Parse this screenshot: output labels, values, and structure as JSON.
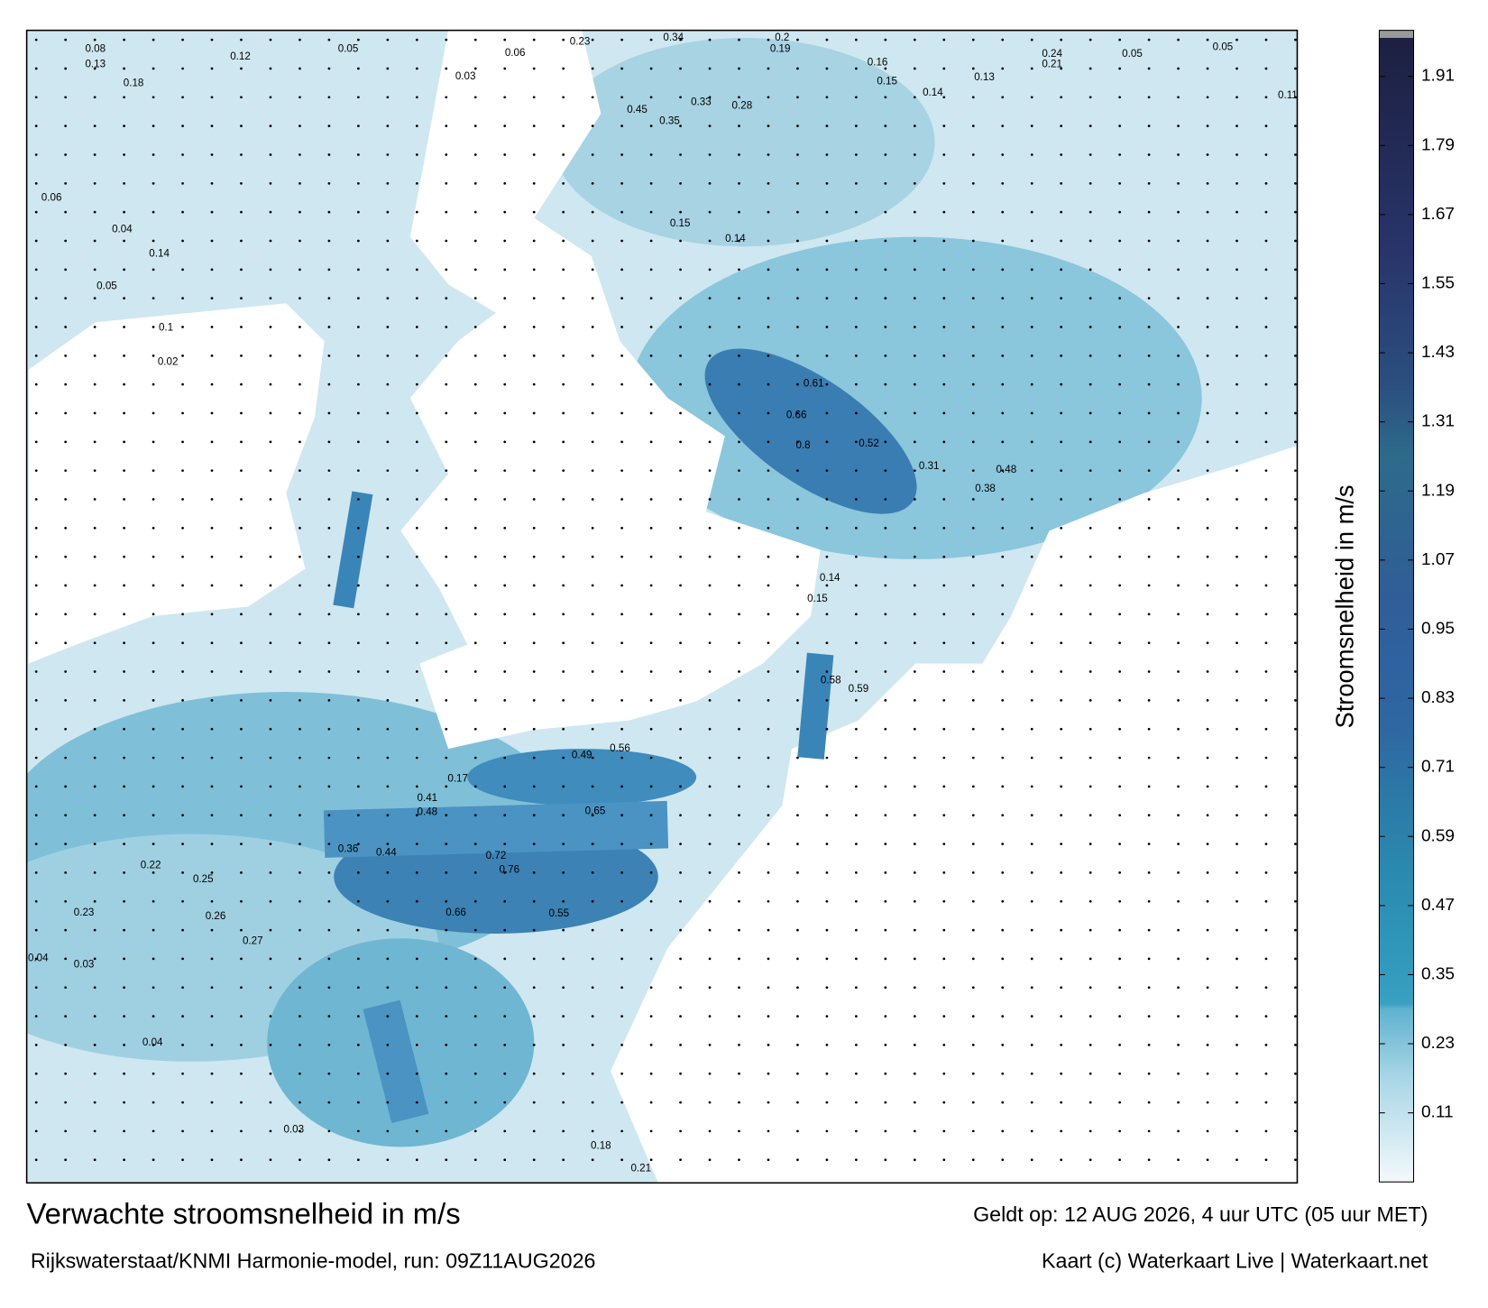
{
  "header": {
    "title": "Verwachte stroomsnelheid in m/s",
    "subtitle": "Rijkswaterstaat/KNMI Harmonie-model, run: 09Z11AUG2026",
    "valid_time": "Geldt op: 12 AUG 2026, 4 uur UTC (05 uur MET)",
    "credit": "Kaart (c) Waterkaart Live | Waterkaart.net"
  },
  "colorbar": {
    "label": "Stroomsnelheid in m/s",
    "lim": [
      -0.01,
      1.99
    ],
    "ticks": [
      0.11,
      0.23,
      0.35,
      0.47,
      0.59,
      0.71,
      0.83,
      0.95,
      1.07,
      1.19,
      1.31,
      1.43,
      1.55,
      1.67,
      1.79,
      1.91
    ],
    "colorscale": [
      [
        -0.01,
        "#f3f9fb"
      ],
      [
        0.17,
        "#a9d6e6"
      ],
      [
        0.29,
        "#5fb2cf"
      ],
      [
        0.3,
        "#3aa0c2"
      ],
      [
        0.41,
        "#2f95b9"
      ],
      [
        0.53,
        "#2b89af"
      ],
      [
        0.65,
        "#2b7aa7"
      ],
      [
        0.77,
        "#2e68a2"
      ],
      [
        0.89,
        "#2f62a0"
      ],
      [
        1.01,
        "#305d97"
      ],
      [
        1.25,
        "#2d6b8a"
      ],
      [
        1.37,
        "#2b4f80"
      ],
      [
        1.61,
        "#28346a"
      ],
      [
        1.99,
        "#1c1f3f"
      ]
    ],
    "cap_color": "#999999"
  },
  "map": {
    "labels": [
      "0.08",
      "0.13",
      "0.18",
      "0.12",
      "0.05",
      "0.03",
      "0.06",
      "0.23",
      "0.34",
      "0.2",
      "0.19",
      "0.16",
      "0.15",
      "0.14",
      "0.13",
      "0.24",
      "0.21",
      "0.05",
      "0.05",
      "0.11",
      "0.06",
      "0.04",
      "0.14",
      "0.05",
      "0.1",
      "0.02",
      "0.45",
      "0.35",
      "0.33",
      "0.28",
      "0.15",
      "0.14",
      "0.66",
      "0.8",
      "0.61",
      "0.52",
      "0.48",
      "0.38",
      "0.31",
      "0.14",
      "0.15",
      "0.58",
      "0.59",
      "0.49",
      "0.56",
      "0.65",
      "0.72",
      "0.76",
      "0.66",
      "0.55",
      "0.44",
      "0.36",
      "0.22",
      "0.25",
      "0.26",
      "0.27",
      "0.23",
      "0.04",
      "0.03",
      "0.04",
      "0.03",
      "0.18",
      "0.21",
      "0.17",
      "0.41",
      "0.48"
    ]
  }
}
